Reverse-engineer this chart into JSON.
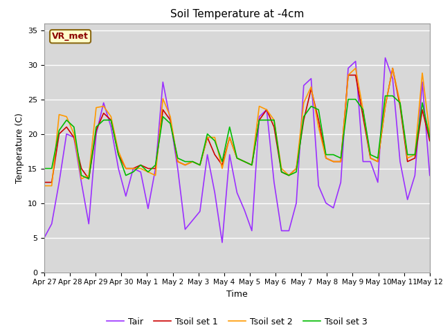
{
  "title": "Soil Temperature at -4cm",
  "xlabel": "Time",
  "ylabel": "Temperature (C)",
  "ylim": [
    0,
    36
  ],
  "yticks": [
    0,
    5,
    10,
    15,
    20,
    25,
    30,
    35
  ],
  "annotation_text": "VR_met",
  "annotation_color": "#8B0000",
  "annotation_bg": "#FFFFCC",
  "annotation_edge": "#8B6914",
  "bg_color": "#D8D8D8",
  "fig_color": "#FFFFFF",
  "colors": {
    "Tair": "#9B30FF",
    "Tsoil_set1": "#CC0000",
    "Tsoil_set2": "#FF9900",
    "Tsoil_set3": "#00BB00"
  },
  "x_tick_labels": [
    "Apr 27",
    "Apr 28",
    "Apr 29",
    "Apr 30",
    "May 1",
    "May 2",
    "May 3",
    "May 4",
    "May 5",
    "May 6",
    "May 7",
    "May 8",
    "May 9",
    "May 10",
    "May 11",
    "May 12"
  ],
  "legend_labels": [
    "Tair",
    "Tsoil set 1",
    "Tsoil set 2",
    "Tsoil set 3"
  ],
  "Tair": [
    5.0,
    7.0,
    13.0,
    20.0,
    19.5,
    13.0,
    7.0,
    20.0,
    24.5,
    21.0,
    15.0,
    11.0,
    15.0,
    14.5,
    9.2,
    15.0,
    27.5,
    22.0,
    15.0,
    6.2,
    7.5,
    8.8,
    17.0,
    11.5,
    4.3,
    17.0,
    11.5,
    9.0,
    6.0,
    22.5,
    23.5,
    13.0,
    6.0,
    6.0,
    10.0,
    27.0,
    28.0,
    12.5,
    10.0,
    9.3,
    13.0,
    29.5,
    30.5,
    16.0,
    16.0,
    13.0,
    31.0,
    28.0,
    16.0,
    10.5,
    14.0,
    27.5,
    14.0
  ],
  "Tsoil_set1": [
    13.0,
    13.0,
    20.0,
    21.0,
    19.5,
    15.0,
    13.5,
    20.5,
    23.0,
    22.0,
    17.0,
    15.0,
    15.0,
    15.5,
    15.0,
    15.0,
    23.5,
    22.0,
    16.0,
    15.5,
    16.0,
    15.5,
    19.5,
    17.0,
    15.5,
    19.5,
    16.5,
    16.0,
    15.5,
    22.0,
    23.5,
    21.0,
    14.5,
    14.0,
    15.0,
    22.0,
    26.5,
    22.0,
    16.5,
    16.0,
    16.0,
    28.5,
    28.5,
    22.5,
    16.5,
    16.0,
    24.0,
    29.5,
    24.0,
    16.0,
    16.5,
    23.5,
    19.0
  ],
  "Tsoil_set2": [
    12.5,
    12.5,
    22.8,
    22.5,
    20.0,
    13.5,
    14.0,
    23.8,
    24.0,
    22.5,
    17.5,
    15.0,
    15.0,
    15.0,
    14.5,
    14.0,
    25.1,
    22.5,
    16.0,
    15.5,
    16.0,
    15.5,
    19.5,
    19.5,
    15.0,
    19.5,
    16.5,
    16.0,
    15.5,
    24.0,
    23.5,
    22.0,
    15.0,
    14.0,
    15.0,
    24.5,
    26.8,
    21.0,
    16.5,
    16.0,
    16.0,
    28.5,
    29.5,
    23.5,
    16.5,
    16.0,
    24.0,
    29.5,
    24.5,
    16.5,
    17.0,
    28.8,
    20.0
  ],
  "Tsoil_set3": [
    15.0,
    15.0,
    20.5,
    22.0,
    21.0,
    14.0,
    13.5,
    21.0,
    22.0,
    22.0,
    17.0,
    14.0,
    14.5,
    15.5,
    14.5,
    15.5,
    22.5,
    21.5,
    16.5,
    16.0,
    16.0,
    15.5,
    20.0,
    19.0,
    16.0,
    21.0,
    16.5,
    16.0,
    15.5,
    22.0,
    22.0,
    22.0,
    14.5,
    14.0,
    14.5,
    22.5,
    24.0,
    23.5,
    17.0,
    17.0,
    16.5,
    25.0,
    25.0,
    23.5,
    17.0,
    16.5,
    25.5,
    25.5,
    24.5,
    17.0,
    17.0,
    24.5,
    19.5
  ]
}
